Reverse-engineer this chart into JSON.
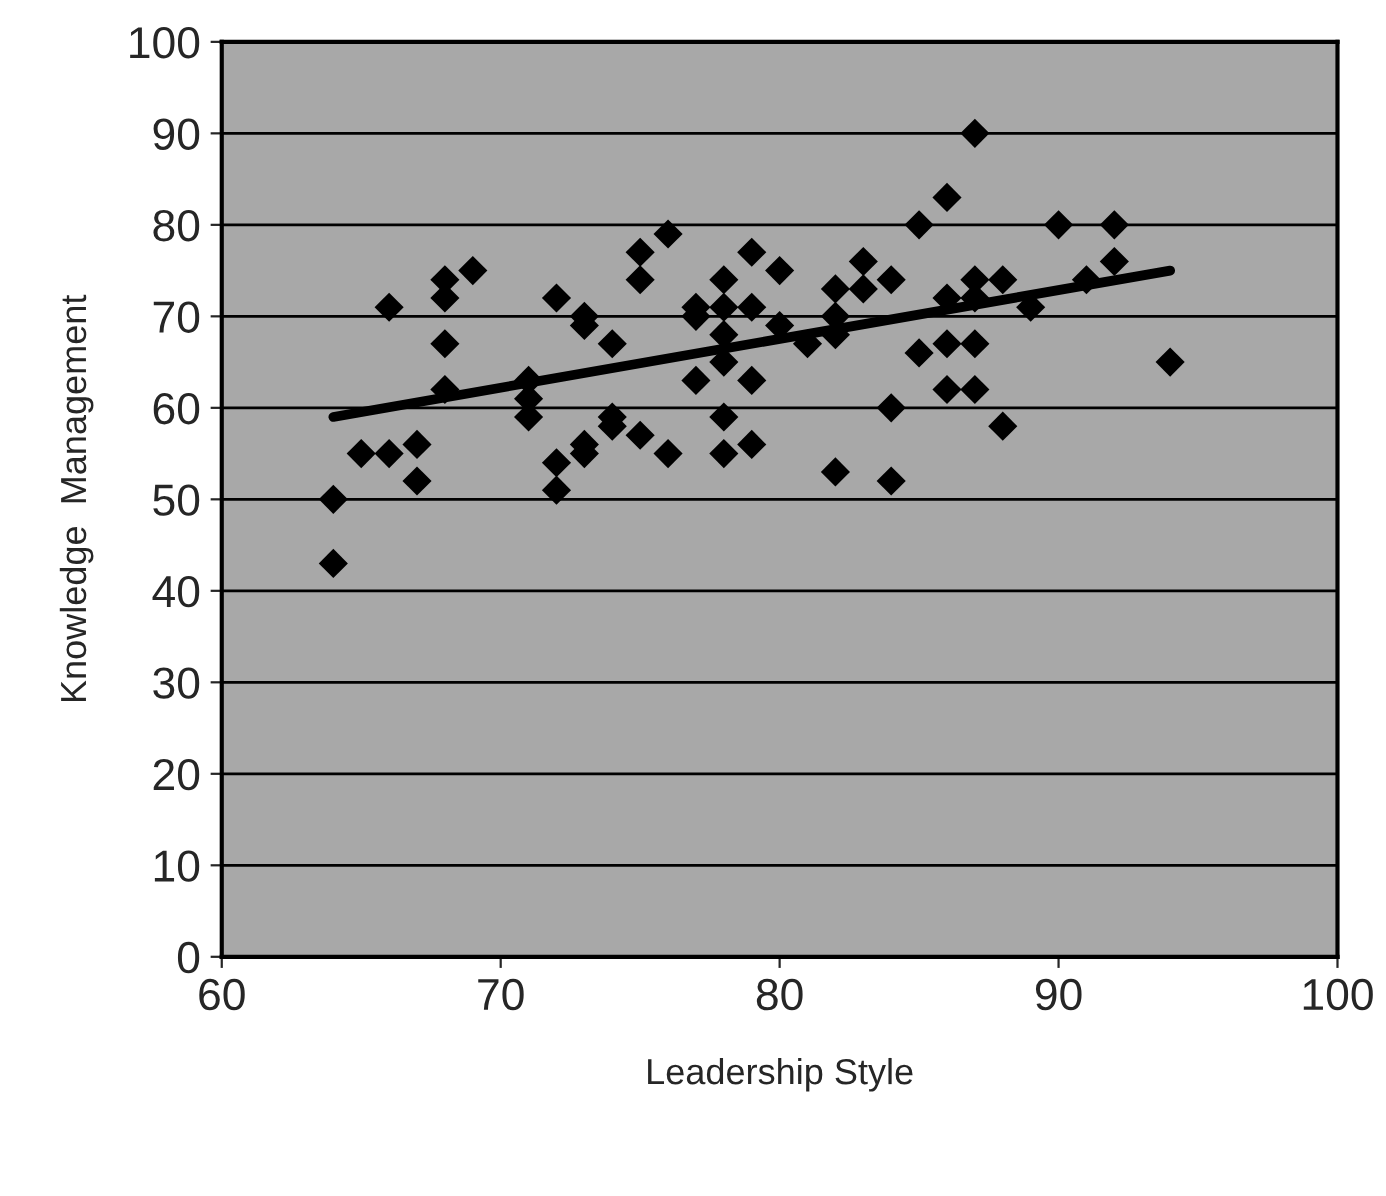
{
  "chart_data": {
    "type": "scatter",
    "xlabel": "Leadership Style",
    "ylabel": "Knowledge  Management",
    "xlim": [
      60,
      100
    ],
    "ylim": [
      0,
      100
    ],
    "xticks": [
      60,
      70,
      80,
      90,
      100
    ],
    "yticks": [
      0,
      10,
      20,
      30,
      40,
      50,
      60,
      70,
      80,
      90,
      100
    ],
    "grid": "y",
    "marker": "diamond",
    "series": [
      {
        "color": "#000000",
        "x": [
          64,
          64,
          65,
          66,
          66,
          67,
          67,
          68,
          68,
          68,
          68,
          69,
          71,
          71,
          71,
          72,
          72,
          72,
          73,
          73,
          73,
          73,
          74,
          74,
          74,
          75,
          75,
          75,
          76,
          76,
          77,
          77,
          77,
          78,
          78,
          78,
          78,
          78,
          78,
          79,
          79,
          79,
          79,
          80,
          80,
          81,
          82,
          82,
          82,
          82,
          83,
          83,
          84,
          84,
          84,
          85,
          85,
          86,
          86,
          86,
          86,
          87,
          87,
          87,
          87,
          87,
          88,
          88,
          89,
          90,
          91,
          92,
          92,
          94
        ],
        "values": [
          50,
          43,
          55,
          71,
          55,
          56,
          52,
          74,
          72,
          67,
          62,
          75,
          63,
          61,
          59,
          72,
          54,
          51,
          70,
          69,
          56,
          55,
          67,
          59,
          58,
          77,
          74,
          57,
          79,
          55,
          71,
          70,
          63,
          74,
          71,
          68,
          65,
          59,
          55,
          77,
          71,
          63,
          56,
          75,
          69,
          67,
          73,
          70,
          68,
          53,
          76,
          73,
          74,
          60,
          52,
          80,
          66,
          83,
          72,
          67,
          62,
          90,
          74,
          72,
          67,
          62,
          74,
          58,
          71,
          80,
          74,
          80,
          76,
          65
        ]
      },
      {
        "type": "line",
        "color": "#000000",
        "x": [
          64,
          94
        ],
        "values": [
          59,
          75
        ],
        "marker": "none"
      }
    ]
  }
}
